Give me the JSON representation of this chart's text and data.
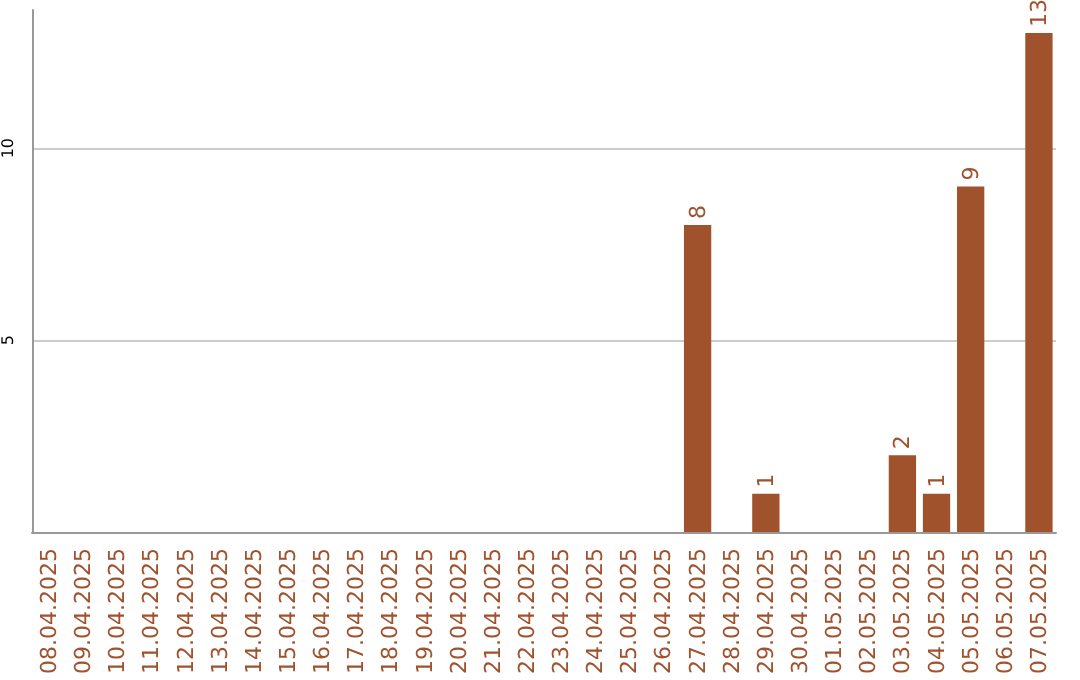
{
  "chart_data": {
    "type": "bar",
    "categories": [
      "08.04.2025",
      "09.04.2025",
      "10.04.2025",
      "11.04.2025",
      "12.04.2025",
      "13.04.2025",
      "14.04.2025",
      "15.04.2025",
      "16.04.2025",
      "17.04.2025",
      "18.04.2025",
      "19.04.2025",
      "20.04.2025",
      "21.04.2025",
      "22.04.2025",
      "23.04.2025",
      "24.04.2025",
      "25.04.2025",
      "26.04.2025",
      "27.04.2025",
      "28.04.2025",
      "29.04.2025",
      "30.04.2025",
      "01.05.2025",
      "02.05.2025",
      "03.05.2025",
      "04.05.2025",
      "05.05.2025",
      "06.05.2025",
      "07.05.2025"
    ],
    "values": [
      0,
      0,
      0,
      0,
      0,
      0,
      0,
      0,
      0,
      0,
      0,
      0,
      0,
      0,
      0,
      0,
      0,
      0,
      0,
      8,
      0,
      1,
      0,
      0,
      0,
      2,
      1,
      9,
      0,
      13
    ],
    "value_labels": [
      null,
      null,
      null,
      null,
      null,
      null,
      null,
      null,
      null,
      null,
      null,
      null,
      null,
      null,
      null,
      null,
      null,
      null,
      null,
      "8",
      null,
      "1",
      null,
      null,
      null,
      "2",
      "1",
      "9",
      null,
      "13"
    ],
    "color": "#a0522d",
    "ylim": [
      0,
      13.6
    ],
    "yticks": [
      5,
      10
    ],
    "grid": "y"
  }
}
